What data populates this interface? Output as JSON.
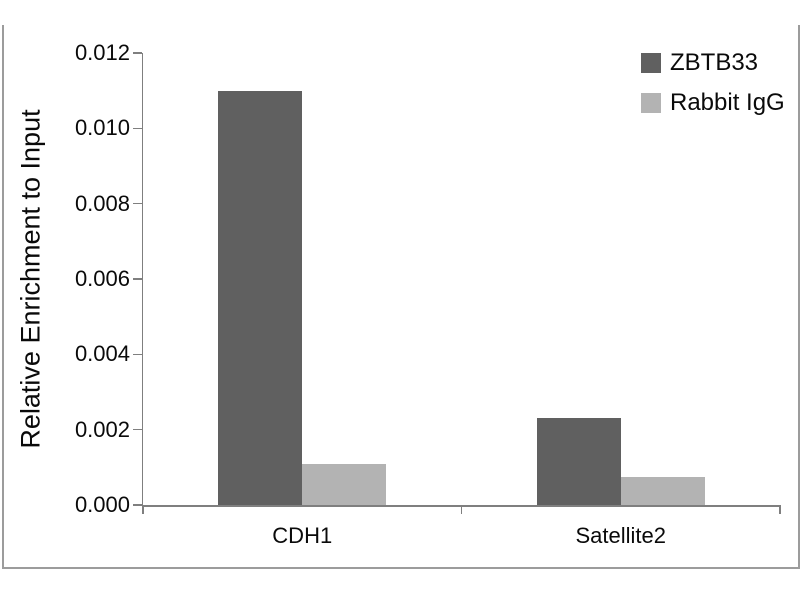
{
  "chart_data": {
    "type": "bar",
    "title": "",
    "xlabel": "",
    "ylabel": "Relative Enrichment to Input",
    "categories": [
      "CDH1",
      "Satellite2"
    ],
    "series": [
      {
        "name": "ZBTB33",
        "color": "#606060",
        "values": [
          0.011,
          0.0023
        ]
      },
      {
        "name": "Rabbit IgG",
        "color": "#b3b3b3",
        "values": [
          0.0011,
          0.00075
        ]
      }
    ],
    "ylim": [
      0,
      0.012
    ],
    "y_ticks": [
      "0.000",
      "0.002",
      "0.004",
      "0.006",
      "0.008",
      "0.010",
      "0.012"
    ],
    "grid": false,
    "legend_position": "top-right",
    "axis_color": "#7f7f7f",
    "frame_color": "#9c9c9c",
    "background_color": "#ffffff"
  }
}
